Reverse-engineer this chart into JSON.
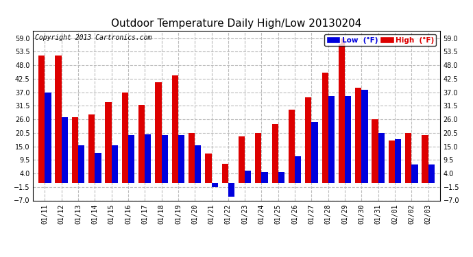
{
  "title": "Outdoor Temperature Daily High/Low 20130204",
  "copyright": "Copyright 2013 Cartronics.com",
  "legend_low": "Low  (°F)",
  "legend_high": "High  (°F)",
  "low_color": "#0000dd",
  "high_color": "#dd0000",
  "ylim": [
    -7.0,
    62.0
  ],
  "yticks": [
    -7.0,
    -1.5,
    4.0,
    9.5,
    15.0,
    20.5,
    26.0,
    31.5,
    37.0,
    42.5,
    48.0,
    53.5,
    59.0
  ],
  "categories": [
    "01/11",
    "01/12",
    "01/13",
    "01/14",
    "01/15",
    "01/16",
    "01/17",
    "01/18",
    "01/19",
    "01/20",
    "01/21",
    "01/22",
    "01/23",
    "01/24",
    "01/25",
    "01/26",
    "01/27",
    "01/28",
    "01/29",
    "01/30",
    "01/31",
    "02/01",
    "02/02",
    "02/03"
  ],
  "high_values": [
    52.0,
    52.0,
    27.0,
    28.0,
    33.0,
    37.0,
    32.0,
    41.0,
    44.0,
    20.5,
    12.0,
    8.0,
    19.0,
    20.5,
    24.0,
    30.0,
    35.0,
    45.0,
    59.0,
    39.0,
    26.0,
    17.5,
    20.5,
    19.5
  ],
  "low_values": [
    37.0,
    27.0,
    15.5,
    12.5,
    15.5,
    19.5,
    20.0,
    19.5,
    19.5,
    15.5,
    -1.5,
    -5.5,
    5.0,
    4.5,
    4.5,
    11.0,
    25.0,
    35.5,
    35.5,
    38.0,
    20.5,
    18.0,
    7.5,
    7.5
  ],
  "bg_color": "#ffffff",
  "grid_color": "#bbbbbb",
  "bar_width": 0.38,
  "title_fontsize": 11,
  "tick_fontsize": 7,
  "copyright_fontsize": 7
}
